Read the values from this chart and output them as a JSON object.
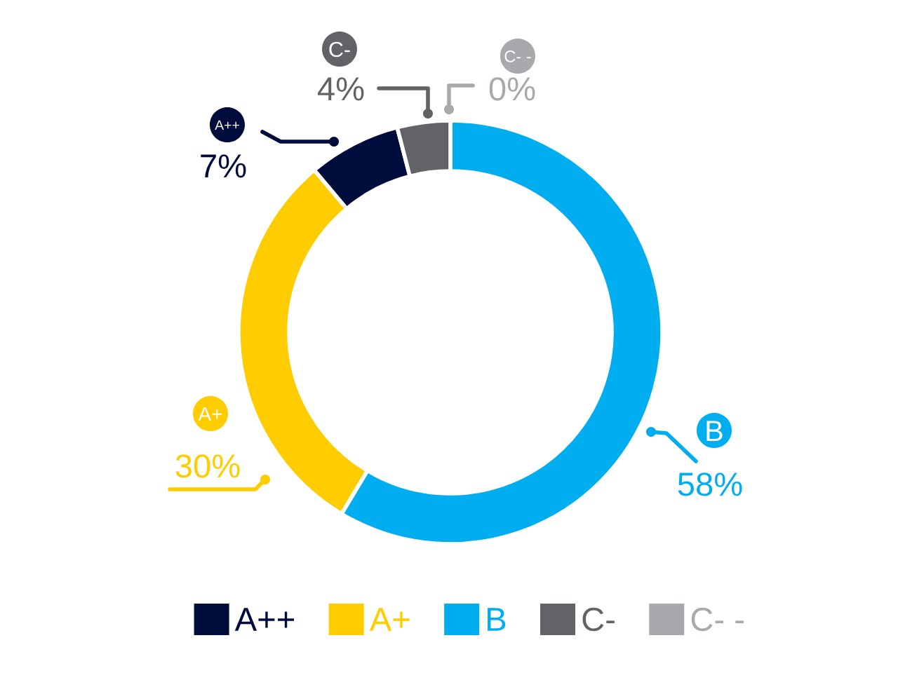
{
  "chart_data": {
    "type": "donut",
    "categories": [
      "A++",
      "A+",
      "B",
      "C-",
      "C- -"
    ],
    "values": [
      7,
      30,
      58,
      4,
      0
    ],
    "value_labels": [
      "7%",
      "30%",
      "58%",
      "4%",
      "0%"
    ],
    "colors": [
      "#000c3b",
      "#ffcc00",
      "#00aeef",
      "#626366",
      "#a7a9ac"
    ],
    "legend": "bottom"
  }
}
